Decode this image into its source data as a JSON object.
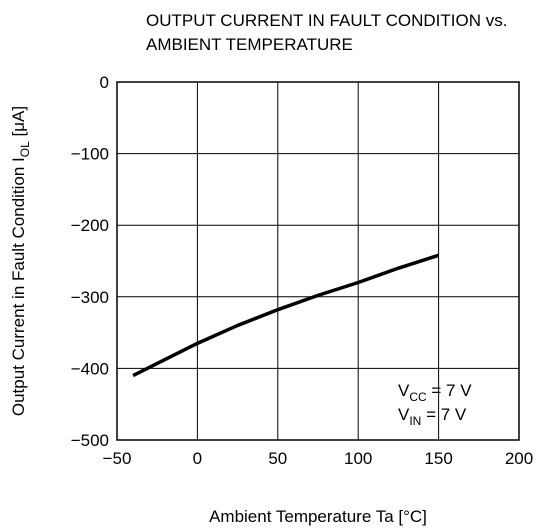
{
  "chart_data": {
    "type": "line",
    "title": [
      "OUTPUT CURRENT IN FAULT CONDITION vs.",
      "AMBIENT TEMPERATURE"
    ],
    "xlabel": "Ambient Temperature  Ta  [°C]",
    "ylabel": {
      "text": "Output Current in Fault Condition  I",
      "sub": "OL",
      "unit": "  [μA]"
    },
    "annotations": [
      {
        "base": "V",
        "sub": "CC",
        "rest": " = 7 V"
      },
      {
        "base": "V",
        "sub": "IN",
        "rest": " = 7 V"
      }
    ],
    "x": [
      -40,
      -25,
      0,
      25,
      50,
      75,
      100,
      125,
      150
    ],
    "series": [
      {
        "color": "#000000",
        "values": [
          -410,
          -393,
          -365,
          -340,
          -318,
          -298,
          -280,
          -260,
          -242
        ]
      }
    ],
    "xlim": [
      -50,
      200
    ],
    "xticks": [
      {
        "value": -50,
        "label": "−50"
      },
      0,
      50,
      100,
      150,
      200
    ],
    "ylim": [
      -500,
      0
    ],
    "yticks": [
      {
        "value": -500,
        "label": "−500"
      },
      {
        "value": -400,
        "label": "−400"
      },
      {
        "value": -300,
        "label": "−300"
      },
      {
        "value": -200,
        "label": "−200"
      },
      {
        "value": -100,
        "label": "−100"
      },
      0
    ],
    "grid": true
  }
}
